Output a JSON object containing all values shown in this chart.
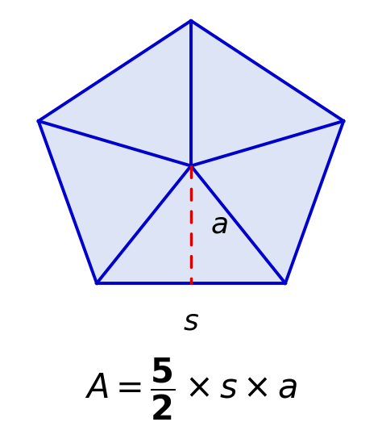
{
  "pentagon_fill_color": "#dde4f5",
  "pentagon_edge_color": "#0000cc",
  "pentagon_linewidth": 2.8,
  "diagonal_color": "#0000cc",
  "diagonal_linewidth": 2.8,
  "apothem_color": "#dd0000",
  "apothem_linewidth": 2.5,
  "label_a_fontsize": 26,
  "label_s_fontsize": 26,
  "formula_fontsize": 30,
  "background_color": "#ffffff",
  "fig_width": 4.74,
  "fig_height": 5.49,
  "dpi": 100
}
